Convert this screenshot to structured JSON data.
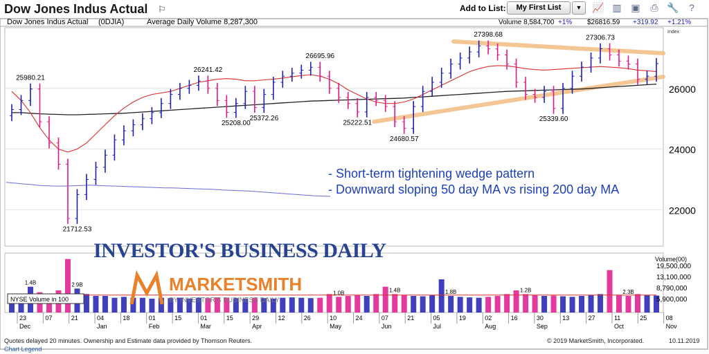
{
  "header": {
    "title": "Dow Jones Indus Actual",
    "add_to_list_label": "Add to List:",
    "list_value": "My First List",
    "tools": [
      {
        "name": "chart-line-icon",
        "glyph": "📈"
      },
      {
        "name": "chart-bar-icon",
        "glyph": "▥"
      },
      {
        "name": "pdf-icon",
        "glyph": "▣"
      },
      {
        "name": "print-icon",
        "glyph": "⎙"
      },
      {
        "name": "wrench-icon",
        "glyph": "🔧"
      },
      {
        "name": "help-icon",
        "glyph": "?"
      }
    ]
  },
  "info_bar": {
    "name": "Dow Jones Indus Actual",
    "symbol": "(0DJIA)",
    "avg_volume": "Average Daily Volume 8,287,300",
    "volume": "Volume 8,584,700",
    "volume_change": "+1%",
    "price": "$26816.59",
    "change": "+319.92",
    "change_pct": "+1.21%",
    "index_label": "Index"
  },
  "chart_data": {
    "type": "candlestick",
    "ylim": [
      20800,
      28000
    ],
    "y_ticks": [
      22000,
      24000,
      26000
    ],
    "y_tick_labels": [
      "22000",
      "24000",
      "26000"
    ],
    "x_ticks": [
      {
        "day": "23",
        "month": "Dec"
      },
      {
        "day": "07",
        "month": ""
      },
      {
        "day": "21",
        "month": ""
      },
      {
        "day": "04",
        "month": "Jan"
      },
      {
        "day": "18",
        "month": ""
      },
      {
        "day": "01",
        "month": "Feb"
      },
      {
        "day": "15",
        "month": ""
      },
      {
        "day": "01",
        "month": "Mar"
      },
      {
        "day": "15",
        "month": ""
      },
      {
        "day": "29",
        "month": "Apr"
      },
      {
        "day": "12",
        "month": ""
      },
      {
        "day": "26",
        "month": ""
      },
      {
        "day": "10",
        "month": "May"
      },
      {
        "day": "24",
        "month": ""
      },
      {
        "day": "07",
        "month": "Jun"
      },
      {
        "day": "21",
        "month": ""
      },
      {
        "day": "05",
        "month": "Jul"
      },
      {
        "day": "19",
        "month": ""
      },
      {
        "day": "02",
        "month": "Aug"
      },
      {
        "day": "16",
        "month": ""
      },
      {
        "day": "30",
        "month": "Sep"
      },
      {
        "day": "13",
        "month": ""
      },
      {
        "day": "27",
        "month": ""
      },
      {
        "day": "11",
        "month": "Oct"
      },
      {
        "day": "25",
        "month": ""
      },
      {
        "day": "08",
        "month": "Nov"
      }
    ],
    "price_labels": [
      {
        "text": "25980.21",
        "value": 25980.21,
        "week": 2
      },
      {
        "text": "21712.53",
        "value": 21712.53,
        "week": 7
      },
      {
        "text": "26241.42",
        "value": 26241.42,
        "week": 21
      },
      {
        "text": "25208.00",
        "value": 25208.0,
        "week": 24
      },
      {
        "text": "25372.26",
        "value": 25372.26,
        "week": 27
      },
      {
        "text": "26695.96",
        "value": 26695.96,
        "week": 33
      },
      {
        "text": "25222.51",
        "value": 25222.51,
        "week": 37
      },
      {
        "text": "24680.57",
        "value": 24680.57,
        "week": 42
      },
      {
        "text": "27398.68",
        "value": 27398.68,
        "week": 51
      },
      {
        "text": "27306.73",
        "value": 27306.73,
        "week": 63
      },
      {
        "text": "25339.60",
        "value": 25339.6,
        "week": 58
      }
    ],
    "annotations": [
      "- Short-term tightening wedge pattern",
      "- Downward sloping 50 day MA vs rising 200 day MA"
    ],
    "volume_labels": [
      {
        "text": "1.4B",
        "week": 2
      },
      {
        "text": "2.9B",
        "week": 7
      },
      {
        "text": "1.0B",
        "week": 35
      },
      {
        "text": "1.4B",
        "week": 41
      },
      {
        "text": "1.8B",
        "week": 47
      },
      {
        "text": "1.2B",
        "week": 55
      },
      {
        "text": "2.3B",
        "week": 66
      }
    ],
    "volume_axis_title": "Volume(00)",
    "volume_ticks": [
      "19,500,000",
      "13,100,000",
      "8,790,000",
      "5,900,000"
    ],
    "volume_box_label": "NYSE Volume in 100",
    "series": [
      {
        "name": "price",
        "closes": [
          25300,
          25600,
          25980,
          24900,
          24200,
          23500,
          21712,
          22500,
          23000,
          23400,
          23800,
          24300,
          24600,
          24800,
          25000,
          25200,
          25500,
          25800,
          26000,
          26100,
          26241,
          26000,
          25600,
          25208,
          25500,
          25900,
          25372,
          25800,
          26200,
          26400,
          26500,
          26600,
          26695,
          26400,
          26000,
          25700,
          25500,
          25222,
          25700,
          25600,
          25400,
          24900,
          24680,
          25400,
          25900,
          26200,
          26500,
          26800,
          27000,
          27200,
          27398,
          27300,
          27100,
          26800,
          26200,
          25800,
          25700,
          25900,
          25339,
          26000,
          26400,
          26700,
          27000,
          27306,
          27100,
          26900,
          26800,
          26300,
          26400,
          26816
        ]
      },
      {
        "name": "50 day MA",
        "values": [
          25900,
          25600,
          25200,
          24700,
          24300,
          24000,
          23900,
          24000,
          24200,
          24500,
          24800,
          25100,
          25350,
          25550,
          25700,
          25800,
          25850,
          25900,
          26000,
          26100,
          26200,
          26250,
          26300,
          26320,
          26300,
          26250,
          26250,
          26280,
          26300,
          26340,
          26380,
          26420,
          26450,
          26400,
          26300,
          26150,
          25950,
          25800,
          25650,
          25550,
          25500,
          25500,
          25550,
          25650,
          25800,
          25950,
          26100,
          26250,
          26400,
          26550,
          26650,
          26720,
          26750,
          26740,
          26700,
          26650,
          26620,
          26600,
          26620,
          26640,
          26660,
          26680,
          26700,
          26720,
          26700,
          26680,
          26650,
          26600,
          26580,
          26550
        ]
      },
      {
        "name": "200 day MA",
        "values": [
          25200,
          25200,
          25180,
          25160,
          25150,
          25140,
          25130,
          25130,
          25140,
          25150,
          25160,
          25170,
          25180,
          25200,
          25220,
          25240,
          25260,
          25280,
          25300,
          25320,
          25340,
          25360,
          25380,
          25400,
          25420,
          25440,
          25460,
          25480,
          25500,
          25520,
          25540,
          25560,
          25580,
          25590,
          25600,
          25610,
          25620,
          25630,
          25640,
          25650,
          25660,
          25670,
          25680,
          25700,
          25720,
          25740,
          25760,
          25780,
          25800,
          25820,
          25840,
          25860,
          25880,
          25900,
          25910,
          25920,
          25930,
          25940,
          25950,
          25960,
          25970,
          25980,
          26000,
          26020,
          26040,
          26060,
          26080,
          26100,
          26120,
          26140
        ]
      },
      {
        "name": "relative strength",
        "values": [
          22900,
          22880,
          22850,
          22830,
          22800,
          22790,
          22780,
          22780,
          22790,
          22800,
          22810,
          22800,
          22790,
          22780,
          22770,
          22760,
          22750,
          22740,
          22730,
          22720,
          22720,
          22710,
          22700,
          22690,
          22680,
          22670,
          22650,
          22640,
          22630,
          22620,
          22600,
          22580,
          22560,
          22540,
          22520,
          22500,
          22480,
          22460,
          22450,
          22440
        ]
      },
      {
        "name": "volume",
        "values": [
          1.0,
          0.9,
          1.4,
          1.1,
          1.0,
          1.2,
          2.9,
          1.3,
          1.0,
          0.9,
          0.9,
          0.8,
          0.85,
          0.8,
          0.8,
          0.75,
          0.8,
          0.78,
          0.8,
          0.76,
          0.8,
          0.78,
          0.82,
          0.8,
          0.78,
          0.76,
          0.8,
          0.78,
          0.76,
          0.8,
          0.82,
          0.8,
          0.78,
          0.8,
          1.0,
          0.85,
          0.9,
          0.95,
          0.9,
          1.0,
          1.4,
          1.0,
          0.95,
          0.9,
          0.88,
          0.95,
          1.8,
          0.9,
          0.85,
          0.82,
          0.8,
          0.85,
          0.9,
          1.0,
          1.2,
          1.0,
          0.95,
          0.9,
          0.92,
          0.88,
          0.85,
          0.9,
          0.95,
          1.0,
          2.3,
          0.95,
          0.9,
          1.0,
          0.95,
          0.92
        ]
      }
    ]
  },
  "watermarks": {
    "ibd": "INVESTOR'S BUSINESS DAILY",
    "marketsmith": "MARKETSMITH",
    "marketsmith_sub": "BY INVESTOR'S BUSINESS DAILY"
  },
  "footer": {
    "disclaimer": "Quotes delayed 20 minutes. Ownership and Estimate data provided by Thomson Reuters.",
    "copyright": "© 2019 MarketSmith, Incorporated.",
    "date": "10.11.2019",
    "legend_link": "Chart Legend"
  },
  "colors": {
    "up": "#1f1fb0",
    "down": "#e0188c",
    "ma50": "#d93030",
    "ma200": "#222222",
    "rs": "#6b6bd6",
    "trend": "#f2b97a",
    "annotation": "#1e3fb8"
  }
}
